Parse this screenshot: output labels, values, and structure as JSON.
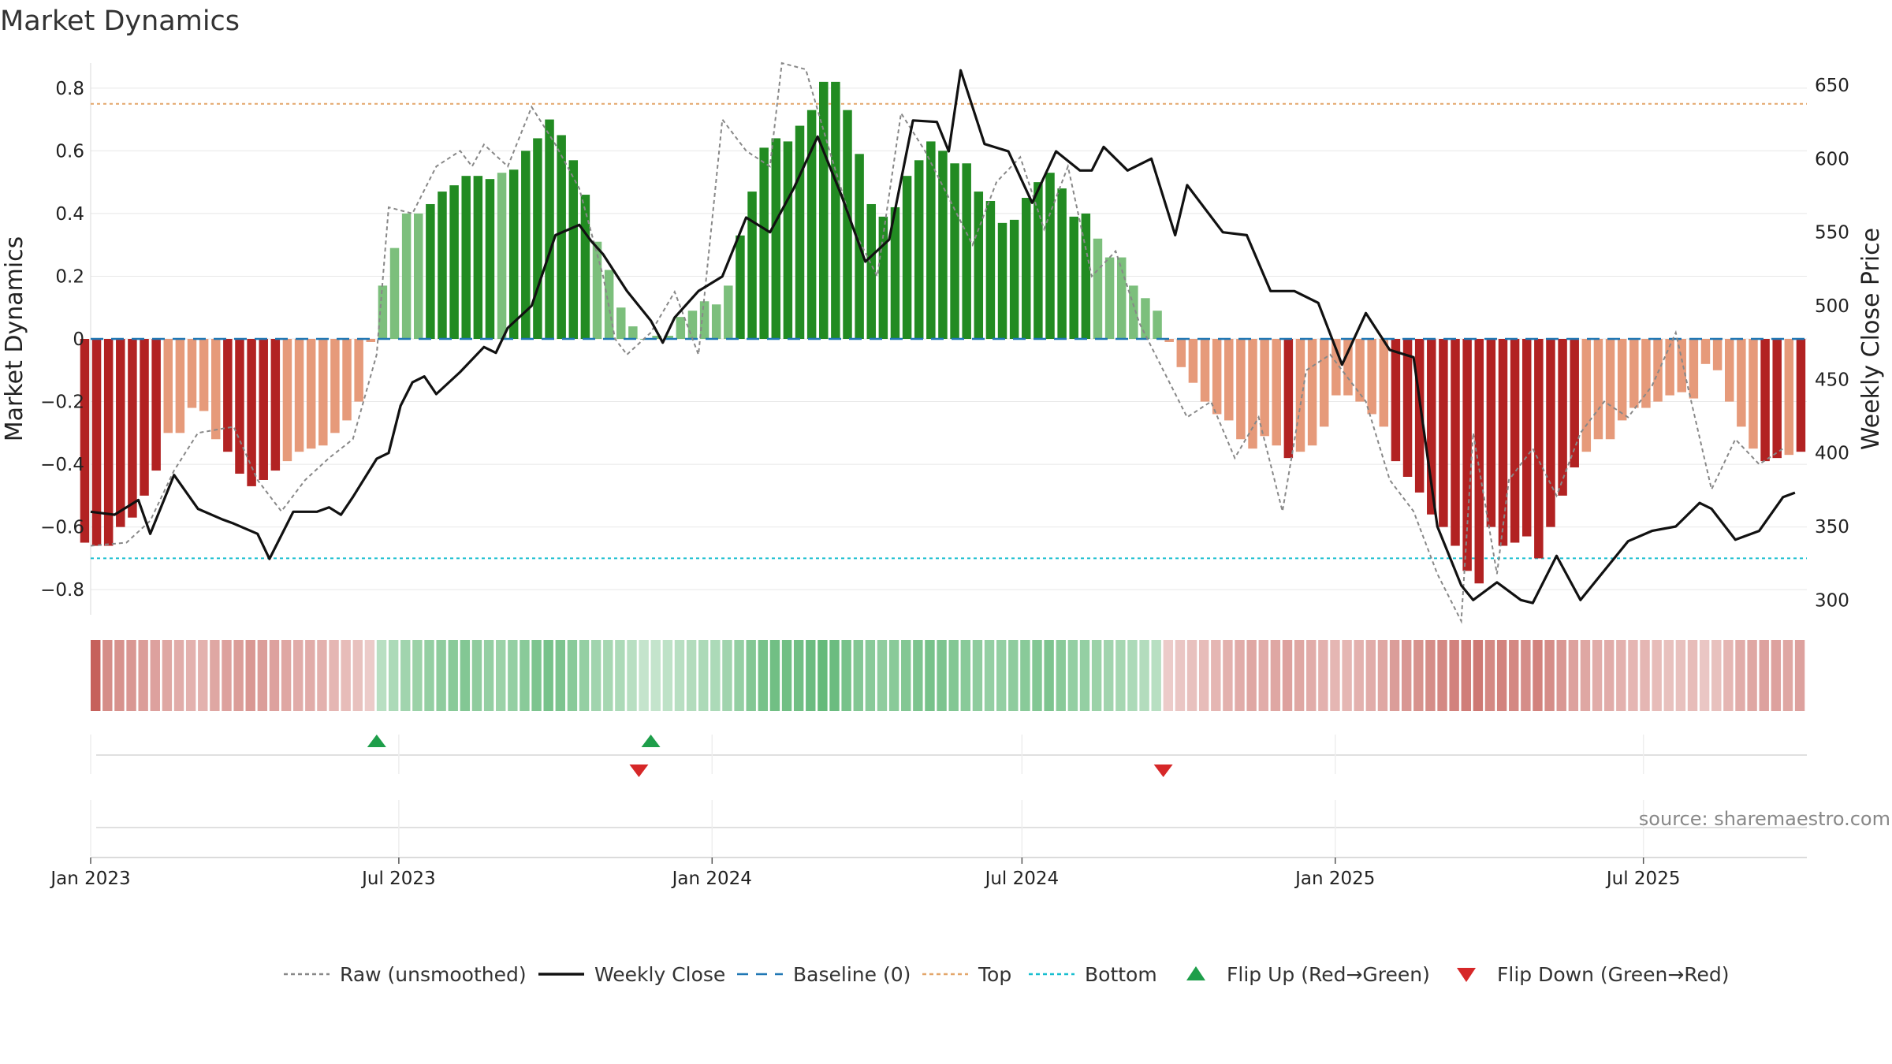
{
  "title": "Market Dynamics",
  "source": "source: sharemaestro.com",
  "colors": {
    "strong_green": "#228b22",
    "light_green": "#7cbf7c",
    "strong_red": "#b22222",
    "light_red": "#e69a7a",
    "raw": "#888888",
    "close": "#111111",
    "baseline": "#1f77b4",
    "top": "#e3a66a",
    "bottom": "#17becf",
    "flip_up": "#1e9e4a",
    "flip_down": "#d62728"
  },
  "legend": [
    {
      "key": "raw",
      "label": "Raw (unsmoothed)",
      "style": "dotted-line"
    },
    {
      "key": "close",
      "label": "Weekly Close",
      "style": "solid-line"
    },
    {
      "key": "baseline",
      "label": "Baseline (0)",
      "style": "dashed-line"
    },
    {
      "key": "top",
      "label": "Top",
      "style": "dotted-line"
    },
    {
      "key": "bottom",
      "label": "Bottom",
      "style": "dotted-line"
    },
    {
      "key": "flip_up",
      "label": "Flip Up (Red→Green)",
      "style": "triangle-up"
    },
    {
      "key": "flip_down",
      "label": "Flip Down (Green→Red)",
      "style": "triangle-down"
    }
  ],
  "chart_data": {
    "type": "bar",
    "title": "Market Dynamics",
    "ylabel": "Market Dynamics",
    "y2label": "Weekly Close Price",
    "ylim": [
      -0.88,
      0.88
    ],
    "y2lim": [
      290,
      665
    ],
    "x_start": "2023-01-01",
    "x_end": "2025-10-05",
    "xticks": [
      {
        "date": "2023-01-01",
        "label": "Jan 2023"
      },
      {
        "date": "2023-07-01",
        "label": "Jul 2023"
      },
      {
        "date": "2024-01-01",
        "label": "Jan 2024"
      },
      {
        "date": "2024-07-01",
        "label": "Jul 2024"
      },
      {
        "date": "2025-01-01",
        "label": "Jan 2025"
      },
      {
        "date": "2025-07-01",
        "label": "Jul 2025"
      }
    ],
    "yticks": [
      0.8,
      0.6,
      0.4,
      0.2,
      0,
      -0.2,
      -0.4,
      -0.6,
      -0.8
    ],
    "yticklabels": [
      "0.8",
      "0.6",
      "0.4",
      "0.2",
      "0",
      "−0.2",
      "−0.4",
      "−0.6",
      "−0.8"
    ],
    "y2ticks": [
      650,
      600,
      550,
      500,
      450,
      400,
      350,
      300
    ],
    "top_line": 0.75,
    "bottom_line": -0.7,
    "baseline": 0,
    "weeks_start": "2022-12-25",
    "bar_values": [
      -0.65,
      -0.66,
      -0.66,
      -0.6,
      -0.57,
      -0.5,
      -0.42,
      -0.3,
      -0.3,
      -0.22,
      -0.23,
      -0.32,
      -0.36,
      -0.43,
      -0.47,
      -0.45,
      -0.42,
      -0.39,
      -0.36,
      -0.35,
      -0.34,
      -0.3,
      -0.26,
      -0.2,
      -0.01,
      0.17,
      0.29,
      0.4,
      0.4,
      0.43,
      0.47,
      0.49,
      0.52,
      0.52,
      0.51,
      0.53,
      0.54,
      0.6,
      0.64,
      0.7,
      0.65,
      0.57,
      0.46,
      0.31,
      0.22,
      0.1,
      0.04,
      0.0,
      0.01,
      0.01,
      0.07,
      0.09,
      0.12,
      0.11,
      0.17,
      0.33,
      0.47,
      0.61,
      0.64,
      0.63,
      0.68,
      0.73,
      0.82,
      0.82,
      0.73,
      0.59,
      0.43,
      0.39,
      0.42,
      0.52,
      0.57,
      0.63,
      0.6,
      0.56,
      0.56,
      0.47,
      0.44,
      0.37,
      0.38,
      0.45,
      0.5,
      0.53,
      0.48,
      0.39,
      0.4,
      0.32,
      0.26,
      0.26,
      0.17,
      0.13,
      0.09,
      -0.01,
      -0.09,
      -0.14,
      -0.2,
      -0.24,
      -0.26,
      -0.32,
      -0.35,
      -0.31,
      -0.34,
      -0.38,
      -0.36,
      -0.34,
      -0.28,
      -0.18,
      -0.18,
      -0.2,
      -0.24,
      -0.28,
      -0.39,
      -0.44,
      -0.49,
      -0.56,
      -0.6,
      -0.66,
      -0.74,
      -0.78,
      -0.6,
      -0.66,
      -0.65,
      -0.63,
      -0.7,
      -0.6,
      -0.5,
      -0.41,
      -0.36,
      -0.32,
      -0.32,
      -0.26,
      -0.22,
      -0.22,
      -0.2,
      -0.18,
      -0.17,
      -0.19,
      -0.08,
      -0.1,
      -0.2,
      -0.28,
      -0.35,
      -0.39,
      -0.38,
      -0.37,
      -0.36
    ],
    "strength": [
      0.9,
      0.85,
      0.8,
      0.75,
      0.7,
      0.65,
      0.6,
      0.55,
      0.5,
      0.45,
      0.45,
      0.55,
      0.6,
      0.65,
      0.7,
      0.65,
      0.6,
      0.55,
      0.5,
      0.5,
      0.45,
      0.4,
      0.35,
      0.3,
      0.2,
      0.3,
      0.4,
      0.5,
      0.55,
      0.6,
      0.65,
      0.7,
      0.75,
      0.65,
      0.6,
      0.55,
      0.6,
      0.7,
      0.8,
      0.85,
      0.8,
      0.7,
      0.6,
      0.5,
      0.45,
      0.4,
      0.3,
      0.2,
      0.2,
      0.25,
      0.3,
      0.35,
      0.4,
      0.4,
      0.5,
      0.6,
      0.75,
      0.85,
      0.9,
      0.9,
      0.9,
      0.95,
      1.0,
      0.95,
      0.85,
      0.75,
      0.7,
      0.65,
      0.7,
      0.75,
      0.8,
      0.85,
      0.8,
      0.75,
      0.7,
      0.65,
      0.6,
      0.6,
      0.65,
      0.7,
      0.75,
      0.8,
      0.7,
      0.6,
      0.6,
      0.55,
      0.5,
      0.45,
      0.4,
      0.35,
      0.3,
      0.2,
      0.25,
      0.3,
      0.35,
      0.4,
      0.45,
      0.5,
      0.55,
      0.5,
      0.55,
      0.6,
      0.55,
      0.5,
      0.45,
      0.4,
      0.4,
      0.45,
      0.5,
      0.55,
      0.65,
      0.7,
      0.75,
      0.8,
      0.85,
      0.9,
      0.95,
      1.0,
      0.85,
      0.9,
      0.85,
      0.8,
      0.9,
      0.8,
      0.7,
      0.6,
      0.55,
      0.5,
      0.5,
      0.45,
      0.4,
      0.4,
      0.35,
      0.3,
      0.3,
      0.35,
      0.25,
      0.3,
      0.4,
      0.5,
      0.55,
      0.6,
      0.6,
      0.55,
      0.6
    ],
    "flip_up": [
      "2023-06-18",
      "2023-11-26"
    ],
    "flip_down": [
      "2023-11-19",
      "2024-09-22"
    ],
    "raw_series": {
      "name": "Raw (unsmoothed)",
      "points": [
        [
          "2023-01-01",
          -0.66
        ],
        [
          "2023-01-22",
          -0.65
        ],
        [
          "2023-02-05",
          -0.58
        ],
        [
          "2023-02-19",
          -0.42
        ],
        [
          "2023-03-05",
          -0.3
        ],
        [
          "2023-03-26",
          -0.28
        ],
        [
          "2023-04-09",
          -0.45
        ],
        [
          "2023-04-23",
          -0.55
        ],
        [
          "2023-05-07",
          -0.45
        ],
        [
          "2023-05-21",
          -0.38
        ],
        [
          "2023-06-04",
          -0.32
        ],
        [
          "2023-06-18",
          -0.05
        ],
        [
          "2023-06-25",
          0.42
        ],
        [
          "2023-07-09",
          0.4
        ],
        [
          "2023-07-23",
          0.55
        ],
        [
          "2023-08-06",
          0.6
        ],
        [
          "2023-08-13",
          0.55
        ],
        [
          "2023-08-20",
          0.62
        ],
        [
          "2023-09-03",
          0.55
        ],
        [
          "2023-09-17",
          0.74
        ],
        [
          "2023-10-01",
          0.62
        ],
        [
          "2023-10-15",
          0.48
        ],
        [
          "2023-10-29",
          0.2
        ],
        [
          "2023-11-05",
          0.0
        ],
        [
          "2023-11-12",
          -0.05
        ],
        [
          "2023-11-26",
          0.02
        ],
        [
          "2023-12-10",
          0.15
        ],
        [
          "2023-12-24",
          -0.05
        ],
        [
          "2024-01-07",
          0.7
        ],
        [
          "2024-01-21",
          0.6
        ],
        [
          "2024-02-04",
          0.55
        ],
        [
          "2024-02-11",
          0.88
        ],
        [
          "2024-02-25",
          0.86
        ],
        [
          "2024-03-10",
          0.6
        ],
        [
          "2024-03-24",
          0.35
        ],
        [
          "2024-04-07",
          0.2
        ],
        [
          "2024-04-21",
          0.72
        ],
        [
          "2024-05-05",
          0.6
        ],
        [
          "2024-05-19",
          0.45
        ],
        [
          "2024-06-02",
          0.3
        ],
        [
          "2024-06-16",
          0.5
        ],
        [
          "2024-06-30",
          0.58
        ],
        [
          "2024-07-14",
          0.35
        ],
        [
          "2024-07-28",
          0.55
        ],
        [
          "2024-08-11",
          0.2
        ],
        [
          "2024-08-25",
          0.28
        ],
        [
          "2024-09-08",
          0.05
        ],
        [
          "2024-09-22",
          -0.1
        ],
        [
          "2024-10-06",
          -0.25
        ],
        [
          "2024-10-20",
          -0.2
        ],
        [
          "2024-11-03",
          -0.38
        ],
        [
          "2024-11-17",
          -0.25
        ],
        [
          "2024-12-01",
          -0.55
        ],
        [
          "2024-12-15",
          -0.1
        ],
        [
          "2024-12-29",
          -0.05
        ],
        [
          "2025-01-19",
          -0.2
        ],
        [
          "2025-02-02",
          -0.45
        ],
        [
          "2025-02-16",
          -0.55
        ],
        [
          "2025-03-02",
          -0.75
        ],
        [
          "2025-03-16",
          -0.9
        ],
        [
          "2025-03-23",
          -0.3
        ],
        [
          "2025-04-06",
          -0.75
        ],
        [
          "2025-04-13",
          -0.45
        ],
        [
          "2025-04-27",
          -0.35
        ],
        [
          "2025-05-11",
          -0.5
        ],
        [
          "2025-05-25",
          -0.3
        ],
        [
          "2025-06-08",
          -0.2
        ],
        [
          "2025-06-22",
          -0.25
        ],
        [
          "2025-07-06",
          -0.15
        ],
        [
          "2025-07-20",
          0.02
        ],
        [
          "2025-07-27",
          -0.15
        ],
        [
          "2025-08-10",
          -0.48
        ],
        [
          "2025-08-24",
          -0.32
        ],
        [
          "2025-09-07",
          -0.4
        ],
        [
          "2025-09-21",
          -0.35
        ]
      ]
    },
    "close_series": {
      "name": "Weekly Close",
      "points": [
        [
          "2023-01-01",
          360
        ],
        [
          "2023-01-15",
          358
        ],
        [
          "2023-01-29",
          368
        ],
        [
          "2023-02-05",
          345
        ],
        [
          "2023-02-19",
          385
        ],
        [
          "2023-03-05",
          362
        ],
        [
          "2023-03-19",
          355
        ],
        [
          "2023-03-26",
          352
        ],
        [
          "2023-04-09",
          345
        ],
        [
          "2023-04-16",
          328
        ],
        [
          "2023-04-30",
          360
        ],
        [
          "2023-05-14",
          360
        ],
        [
          "2023-05-21",
          363
        ],
        [
          "2023-05-28",
          358
        ],
        [
          "2023-06-04",
          370
        ],
        [
          "2023-06-18",
          396
        ],
        [
          "2023-06-25",
          400
        ],
        [
          "2023-07-02",
          432
        ],
        [
          "2023-07-09",
          448
        ],
        [
          "2023-07-16",
          452
        ],
        [
          "2023-07-23",
          440
        ],
        [
          "2023-08-06",
          455
        ],
        [
          "2023-08-20",
          472
        ],
        [
          "2023-08-27",
          468
        ],
        [
          "2023-09-03",
          485
        ],
        [
          "2023-09-17",
          500
        ],
        [
          "2023-10-01",
          548
        ],
        [
          "2023-10-15",
          555
        ],
        [
          "2023-10-22",
          544
        ],
        [
          "2023-10-29",
          535
        ],
        [
          "2023-11-12",
          510
        ],
        [
          "2023-11-26",
          490
        ],
        [
          "2023-12-03",
          475
        ],
        [
          "2023-12-10",
          492
        ],
        [
          "2023-12-24",
          510
        ],
        [
          "2024-01-07",
          520
        ],
        [
          "2024-01-21",
          560
        ],
        [
          "2024-02-04",
          550
        ],
        [
          "2024-02-18",
          580
        ],
        [
          "2024-03-03",
          615
        ],
        [
          "2024-03-17",
          575
        ],
        [
          "2024-03-31",
          530
        ],
        [
          "2024-04-14",
          545
        ],
        [
          "2024-04-28",
          626
        ],
        [
          "2024-05-12",
          625
        ],
        [
          "2024-05-19",
          605
        ],
        [
          "2024-05-26",
          660
        ],
        [
          "2024-06-09",
          610
        ],
        [
          "2024-06-23",
          605
        ],
        [
          "2024-07-07",
          570
        ],
        [
          "2024-07-21",
          605
        ],
        [
          "2024-08-04",
          592
        ],
        [
          "2024-08-11",
          592
        ],
        [
          "2024-08-18",
          608
        ],
        [
          "2024-09-01",
          592
        ],
        [
          "2024-09-15",
          600
        ],
        [
          "2024-09-29",
          548
        ],
        [
          "2024-10-06",
          582
        ],
        [
          "2024-10-27",
          550
        ],
        [
          "2024-11-10",
          548
        ],
        [
          "2024-11-24",
          510
        ],
        [
          "2024-12-08",
          510
        ],
        [
          "2024-12-22",
          502
        ],
        [
          "2025-01-05",
          460
        ],
        [
          "2025-01-19",
          495
        ],
        [
          "2025-02-02",
          470
        ],
        [
          "2025-02-16",
          465
        ],
        [
          "2025-03-02",
          350
        ],
        [
          "2025-03-16",
          310
        ],
        [
          "2025-03-23",
          300
        ],
        [
          "2025-04-06",
          312
        ],
        [
          "2025-04-20",
          300
        ],
        [
          "2025-04-27",
          298
        ],
        [
          "2025-05-11",
          330
        ],
        [
          "2025-05-25",
          300
        ],
        [
          "2025-06-08",
          320
        ],
        [
          "2025-06-22",
          340
        ],
        [
          "2025-07-06",
          347
        ],
        [
          "2025-07-20",
          350
        ],
        [
          "2025-08-03",
          366
        ],
        [
          "2025-08-10",
          362
        ],
        [
          "2025-08-24",
          341
        ],
        [
          "2025-09-07",
          347
        ],
        [
          "2025-09-21",
          370
        ],
        [
          "2025-09-28",
          373
        ]
      ]
    }
  }
}
